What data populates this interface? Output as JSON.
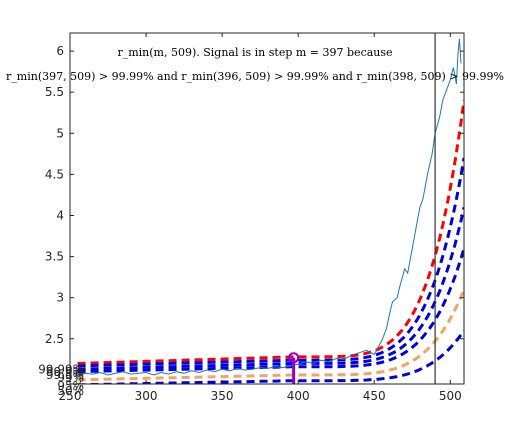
{
  "chart_data": {
    "type": "line",
    "title_line1": "r_min(m, 509). Signal is in step m = 397 because",
    "title_line2": "r_min(397, 509) > 99.99% and r_min(396, 509) > 99.99% and r_min(398, 509) > 99.99%",
    "xlim": [
      250,
      509
    ],
    "ylim": [
      1.95,
      6.22
    ],
    "x_ticks": [
      "250",
      "300",
      "350",
      "400",
      "450",
      "500"
    ],
    "y_ticks": [
      "2.5",
      "3",
      "3.5",
      "4",
      "4.5",
      "5",
      "5.5",
      "6"
    ],
    "y_tick_values": [
      2.5,
      3,
      3.5,
      4,
      4.5,
      5,
      5.5,
      6
    ],
    "x_tick_values": [
      250,
      300,
      350,
      400,
      450,
      500
    ],
    "series": [
      {
        "kind": "signal",
        "color": "#1f77b4",
        "points": [
          [
            255,
            2.06
          ],
          [
            260,
            2.08
          ],
          [
            265,
            2.07
          ],
          [
            270,
            2.09
          ],
          [
            275,
            2.06
          ],
          [
            280,
            2.08
          ],
          [
            285,
            2.1
          ],
          [
            290,
            2.07
          ],
          [
            295,
            2.08
          ],
          [
            300,
            2.09
          ],
          [
            305,
            2.06
          ],
          [
            310,
            2.09
          ],
          [
            315,
            2.07
          ],
          [
            320,
            2.1
          ],
          [
            325,
            2.08
          ],
          [
            330,
            2.11
          ],
          [
            335,
            2.09
          ],
          [
            340,
            2.12
          ],
          [
            345,
            2.1
          ],
          [
            350,
            2.13
          ],
          [
            355,
            2.11
          ],
          [
            360,
            2.14
          ],
          [
            365,
            2.12
          ],
          [
            370,
            2.13
          ],
          [
            375,
            2.15
          ],
          [
            380,
            2.14
          ],
          [
            385,
            2.16
          ],
          [
            390,
            2.15
          ],
          [
            395,
            2.17
          ],
          [
            397,
            2.18
          ],
          [
            400,
            2.19
          ],
          [
            405,
            2.22
          ],
          [
            410,
            2.2
          ],
          [
            415,
            2.24
          ],
          [
            420,
            2.22
          ],
          [
            425,
            2.26
          ],
          [
            430,
            2.25
          ],
          [
            435,
            2.3
          ],
          [
            440,
            2.33
          ],
          [
            445,
            2.36
          ],
          [
            450,
            2.31
          ],
          [
            452,
            2.38
          ],
          [
            455,
            2.48
          ],
          [
            458,
            2.62
          ],
          [
            460,
            2.8
          ],
          [
            462,
            2.95
          ],
          [
            465,
            3.0
          ],
          [
            467,
            3.15
          ],
          [
            470,
            3.35
          ],
          [
            472,
            3.3
          ],
          [
            475,
            3.6
          ],
          [
            478,
            3.9
          ],
          [
            480,
            4.1
          ],
          [
            482,
            4.2
          ],
          [
            485,
            4.5
          ],
          [
            488,
            4.75
          ],
          [
            490,
            5.0
          ],
          [
            493,
            5.2
          ],
          [
            495,
            5.4
          ],
          [
            498,
            5.55
          ],
          [
            500,
            5.65
          ],
          [
            502,
            5.8
          ],
          [
            504,
            5.6
          ],
          [
            505,
            5.95
          ],
          [
            506,
            6.15
          ],
          [
            507,
            5.85
          ]
        ]
      }
    ],
    "thresholds": [
      {
        "label": "99.99%",
        "color": "#ff0000",
        "start": 2.2,
        "mid": 2.28,
        "end": 5.4
      },
      {
        "label": "99.9%",
        "color": "#0000dd",
        "start": 2.17,
        "mid": 2.24,
        "end": 4.7
      },
      {
        "label": "99.5%",
        "color": "#0000dd",
        "start": 2.13,
        "mid": 2.2,
        "end": 4.1
      },
      {
        "label": "99%",
        "color": "#0000dd",
        "start": 2.1,
        "mid": 2.16,
        "end": 3.6
      },
      {
        "label": "95%",
        "color": "#f4a460",
        "start": 2.0,
        "mid": 2.06,
        "end": 3.1
      },
      {
        "label": "50%",
        "color": "#0000dd",
        "start": 1.94,
        "mid": 1.99,
        "end": 2.6
      }
    ],
    "vertical_lines": [
      {
        "x": 397,
        "color": "#9400d3"
      },
      {
        "x": 490,
        "color": "#333333"
      }
    ],
    "marker": {
      "x": 397,
      "y": 2.27,
      "color": "#9400d3"
    }
  }
}
